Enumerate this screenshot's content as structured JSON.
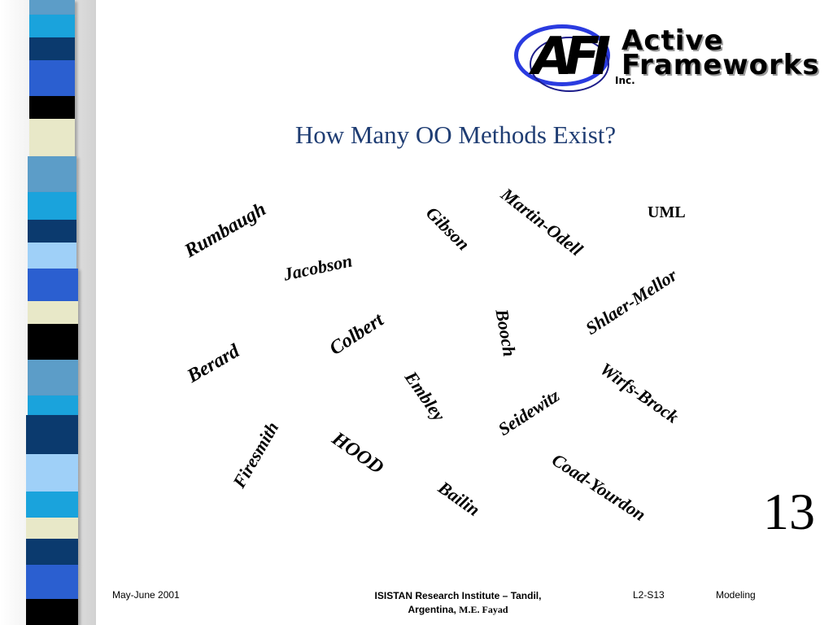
{
  "slide": {
    "title": "How Many OO Methods Exist?",
    "number": "13"
  },
  "logo": {
    "mark": "AFI",
    "line1": "Active",
    "line2": "Frameworks",
    "line3": "Inc."
  },
  "methods": {
    "rumbaugh": "Rumbaugh",
    "jacobson": "Jacobson",
    "gibson": "Gibson",
    "martin_odell": "Martin-Odell",
    "uml": "UML",
    "shlaer_mellor": "Shlaer-Mellor",
    "booch": "Booch",
    "colbert": "Colbert",
    "berard": "Berard",
    "embley": "Embley",
    "wirfs_brock": "Wirfs-Brock",
    "seidewitz": "Seidewitz",
    "firesmith": "Firesmith",
    "hood": "HOOD",
    "coad_yourdon": "Coad-Yourdon",
    "bailin": "Bailin"
  },
  "footer": {
    "date": "May-June 2001",
    "institute_line1": "ISISTAN Research Institute – Tandil,",
    "institute_line2": "Argentina,",
    "author": "M.E. Fayad",
    "code": "L2-S13",
    "topic": "Modeling"
  },
  "colors": {
    "title": "#1f3d73",
    "logo_ring": "#2a3be0",
    "stripe": [
      "#2b5fd0",
      "#5c9dc8",
      "#1aa3dc",
      "#0b3a6e",
      "#e8e8c8",
      "#000000",
      "#9fd0f8"
    ]
  }
}
